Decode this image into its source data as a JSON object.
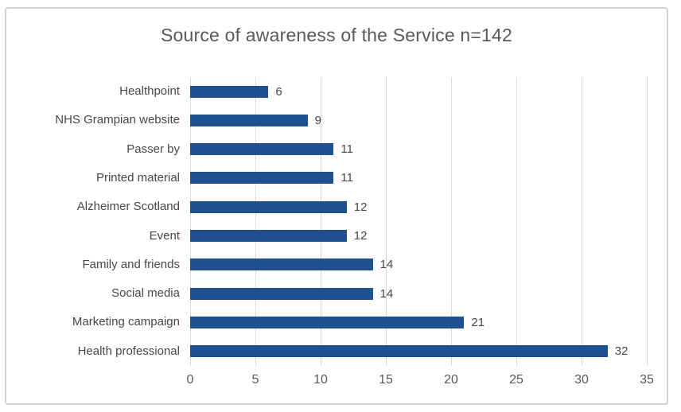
{
  "chart_data": {
    "type": "bar",
    "orientation": "horizontal",
    "title": "Source of awareness of the Service n=142",
    "categories": [
      "Healthpoint",
      "NHS Grampian website",
      "Passer by",
      "Printed material",
      "Alzheimer Scotland",
      "Event",
      "Family and friends",
      "Social media",
      "Marketing campaign",
      "Health professional"
    ],
    "values": [
      6,
      9,
      11,
      11,
      12,
      12,
      14,
      14,
      21,
      32
    ],
    "data_labels": [
      "6",
      "9",
      "11",
      "11",
      "12",
      "12",
      "14",
      "14",
      "21",
      "32"
    ],
    "xlabel": "",
    "ylabel": "",
    "xlim": [
      0,
      35
    ],
    "x_ticks": [
      "0",
      "5",
      "10",
      "15",
      "20",
      "25",
      "30",
      "35"
    ],
    "grid": "vertical-gridlines",
    "legend": "none",
    "colors": {
      "bar": "#21508f",
      "gridline": "#d9d9d9",
      "title_text": "#595959",
      "label_text": "#474747",
      "axis_text": "#595959",
      "frame_border": "#d2d2d2",
      "background": "#ffffff"
    }
  }
}
